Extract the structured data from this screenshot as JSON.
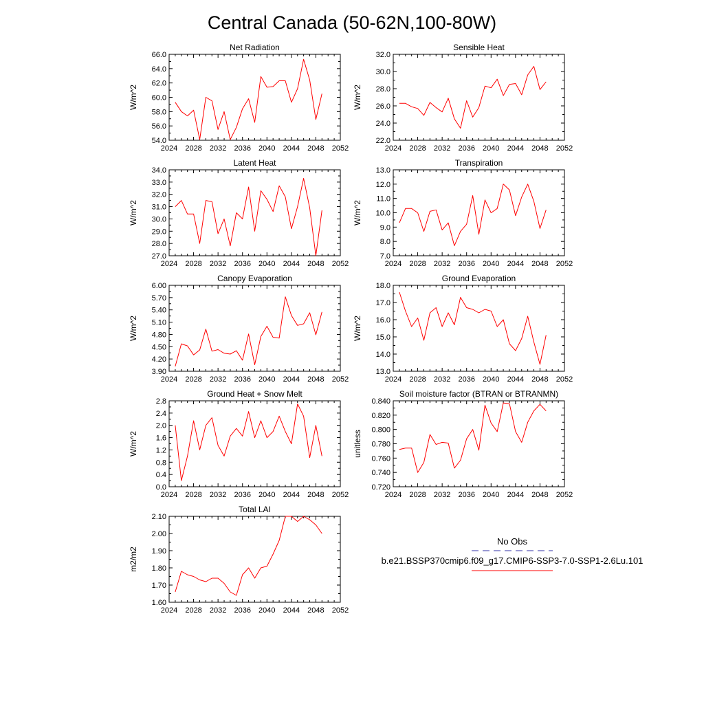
{
  "title": "Central Canada (50-62N,100-80W)",
  "legend": {
    "obs_label": "No Obs",
    "model_label": "b.e21.BSSP370cmip6.f09_g17.CMIP6-SSP3-7.0-SSP1-2.6Lu.101",
    "obs_color": "#3333aa",
    "model_color": "#ff0000"
  },
  "chart_data": [
    {
      "type": "line",
      "title": "Net Radiation",
      "ylabel": "W/m^2",
      "xlim": [
        2024,
        2052
      ],
      "ylim": [
        54.0,
        66.0
      ],
      "xticks": [
        "2024",
        "2028",
        "2032",
        "2036",
        "2040",
        "2044",
        "2048",
        "2052"
      ],
      "yticks": [
        "54.0",
        "56.0",
        "58.0",
        "60.0",
        "62.0",
        "64.0",
        "66.0"
      ],
      "x": [
        2025,
        2026,
        2027,
        2028,
        2029,
        2030,
        2031,
        2032,
        2033,
        2034,
        2035,
        2036,
        2037,
        2038,
        2039,
        2040,
        2041,
        2042,
        2043,
        2044,
        2045,
        2046,
        2047,
        2048,
        2049
      ],
      "series": [
        {
          "values": [
            59.3,
            58.0,
            57.4,
            58.2,
            54.1,
            60.0,
            59.5,
            55.5,
            58.0,
            54.1,
            55.8,
            58.4,
            59.8,
            56.5,
            62.9,
            61.4,
            61.5,
            62.3,
            62.3,
            59.3,
            61.2,
            65.3,
            62.4,
            56.9,
            60.5
          ]
        }
      ]
    },
    {
      "type": "line",
      "title": "Sensible Heat",
      "ylabel": "W/m^2",
      "xlim": [
        2024,
        2052
      ],
      "ylim": [
        22.0,
        32.0
      ],
      "xticks": [
        "2024",
        "2028",
        "2032",
        "2036",
        "2040",
        "2044",
        "2048",
        "2052"
      ],
      "yticks": [
        "22.0",
        "24.0",
        "26.0",
        "28.0",
        "30.0",
        "32.0"
      ],
      "x": [
        2025,
        2026,
        2027,
        2028,
        2029,
        2030,
        2031,
        2032,
        2033,
        2034,
        2035,
        2036,
        2037,
        2038,
        2039,
        2040,
        2041,
        2042,
        2043,
        2044,
        2045,
        2046,
        2047,
        2048,
        2049
      ],
      "series": [
        {
          "values": [
            26.3,
            26.3,
            25.9,
            25.7,
            24.9,
            26.4,
            25.8,
            25.3,
            26.9,
            24.5,
            23.4,
            26.6,
            24.7,
            25.8,
            28.3,
            28.1,
            29.1,
            27.2,
            28.5,
            28.6,
            27.3,
            29.6,
            30.6,
            27.9,
            28.8
          ]
        }
      ]
    },
    {
      "type": "line",
      "title": "Latent Heat",
      "ylabel": "W/m^2",
      "xlim": [
        2024,
        2052
      ],
      "ylim": [
        27.0,
        34.0
      ],
      "xticks": [
        "2024",
        "2028",
        "2032",
        "2036",
        "2040",
        "2044",
        "2048",
        "2052"
      ],
      "yticks": [
        "27.0",
        "28.0",
        "29.0",
        "30.0",
        "31.0",
        "32.0",
        "33.0",
        "34.0"
      ],
      "x": [
        2025,
        2026,
        2027,
        2028,
        2029,
        2030,
        2031,
        2032,
        2033,
        2034,
        2035,
        2036,
        2037,
        2038,
        2039,
        2040,
        2041,
        2042,
        2043,
        2044,
        2045,
        2046,
        2047,
        2048,
        2049
      ],
      "series": [
        {
          "values": [
            31.0,
            31.5,
            30.4,
            30.4,
            28.0,
            31.5,
            31.4,
            28.8,
            30.0,
            27.8,
            30.5,
            30.0,
            32.6,
            29.0,
            32.3,
            31.6,
            30.6,
            32.7,
            31.8,
            29.2,
            31.0,
            33.3,
            30.9,
            27.0,
            30.7
          ]
        }
      ]
    },
    {
      "type": "line",
      "title": "Transpiration",
      "ylabel": "W/m^2",
      "xlim": [
        2024,
        2052
      ],
      "ylim": [
        7.0,
        13.0
      ],
      "xticks": [
        "2024",
        "2028",
        "2032",
        "2036",
        "2040",
        "2044",
        "2048",
        "2052"
      ],
      "yticks": [
        "7.0",
        "8.0",
        "9.0",
        "10.0",
        "11.0",
        "12.0",
        "13.0"
      ],
      "x": [
        2025,
        2026,
        2027,
        2028,
        2029,
        2030,
        2031,
        2032,
        2033,
        2034,
        2035,
        2036,
        2037,
        2038,
        2039,
        2040,
        2041,
        2042,
        2043,
        2044,
        2045,
        2046,
        2047,
        2048,
        2049
      ],
      "series": [
        {
          "values": [
            9.3,
            10.3,
            10.3,
            10.0,
            8.7,
            10.1,
            10.2,
            8.8,
            9.3,
            7.7,
            8.7,
            9.2,
            11.2,
            8.5,
            10.9,
            10.0,
            10.3,
            12.0,
            11.6,
            9.8,
            11.1,
            12.0,
            10.8,
            8.9,
            10.2
          ]
        }
      ]
    },
    {
      "type": "line",
      "title": "Canopy Evaporation",
      "ylabel": "W/m^2",
      "xlim": [
        2024,
        2052
      ],
      "ylim": [
        3.9,
        6.0
      ],
      "xticks": [
        "2024",
        "2028",
        "2032",
        "2036",
        "2040",
        "2044",
        "2048",
        "2052"
      ],
      "yticks": [
        "3.90",
        "4.20",
        "4.50",
        "4.80",
        "5.10",
        "5.40",
        "5.70",
        "6.00"
      ],
      "x": [
        2025,
        2026,
        2027,
        2028,
        2029,
        2030,
        2031,
        2032,
        2033,
        2034,
        2035,
        2036,
        2037,
        2038,
        2039,
        2040,
        2041,
        2042,
        2043,
        2044,
        2045,
        2046,
        2047,
        2048,
        2049
      ],
      "series": [
        {
          "values": [
            4.02,
            4.57,
            4.52,
            4.3,
            4.42,
            4.93,
            4.39,
            4.43,
            4.34,
            4.32,
            4.4,
            4.17,
            4.81,
            4.06,
            4.75,
            5.0,
            4.73,
            4.71,
            5.72,
            5.26,
            5.02,
            5.06,
            5.33,
            4.79,
            5.35
          ]
        }
      ]
    },
    {
      "type": "line",
      "title": "Ground Evaporation",
      "ylabel": "W/m^2",
      "xlim": [
        2024,
        2052
      ],
      "ylim": [
        13.0,
        18.0
      ],
      "xticks": [
        "2024",
        "2028",
        "2032",
        "2036",
        "2040",
        "2044",
        "2048",
        "2052"
      ],
      "yticks": [
        "13.0",
        "14.0",
        "15.0",
        "16.0",
        "17.0",
        "18.0"
      ],
      "x": [
        2025,
        2026,
        2027,
        2028,
        2029,
        2030,
        2031,
        2032,
        2033,
        2034,
        2035,
        2036,
        2037,
        2038,
        2039,
        2040,
        2041,
        2042,
        2043,
        2044,
        2045,
        2046,
        2047,
        2048,
        2049
      ],
      "series": [
        {
          "values": [
            17.6,
            16.5,
            15.6,
            16.1,
            14.8,
            16.4,
            16.7,
            15.6,
            16.4,
            15.7,
            17.3,
            16.7,
            16.6,
            16.4,
            16.6,
            16.5,
            15.6,
            16.0,
            14.6,
            14.2,
            14.9,
            16.2,
            14.7,
            13.4,
            15.1
          ]
        }
      ]
    },
    {
      "type": "line",
      "title": "Ground Heat + Snow Melt",
      "ylabel": "W/m^2",
      "xlim": [
        2024,
        2052
      ],
      "ylim": [
        0.0,
        2.8
      ],
      "xticks": [
        "2024",
        "2028",
        "2032",
        "2036",
        "2040",
        "2044",
        "2048",
        "2052"
      ],
      "yticks": [
        "0.0",
        "0.4",
        "0.8",
        "1.2",
        "1.6",
        "2.0",
        "2.4",
        "2.8"
      ],
      "x": [
        2025,
        2026,
        2027,
        2028,
        2029,
        2030,
        2031,
        2032,
        2033,
        2034,
        2035,
        2036,
        2037,
        2038,
        2039,
        2040,
        2041,
        2042,
        2043,
        2044,
        2045,
        2046,
        2047,
        2048,
        2049
      ],
      "series": [
        {
          "values": [
            2.0,
            0.2,
            1.0,
            2.15,
            1.2,
            2.0,
            2.25,
            1.35,
            1.0,
            1.65,
            1.9,
            1.65,
            2.45,
            1.6,
            2.15,
            1.6,
            1.8,
            2.3,
            1.8,
            1.4,
            2.7,
            2.3,
            0.95,
            2.0,
            1.0
          ]
        }
      ]
    },
    {
      "type": "line",
      "title": "Soil moisture factor (BTRAN or BTRANMN)",
      "ylabel": "unitless",
      "xlim": [
        2024,
        2052
      ],
      "ylim": [
        0.72,
        0.84
      ],
      "xticks": [
        "2024",
        "2028",
        "2032",
        "2036",
        "2040",
        "2044",
        "2048",
        "2052"
      ],
      "yticks": [
        "0.720",
        "0.740",
        "0.760",
        "0.780",
        "0.800",
        "0.820",
        "0.840"
      ],
      "x": [
        2025,
        2026,
        2027,
        2028,
        2029,
        2030,
        2031,
        2032,
        2033,
        2034,
        2035,
        2036,
        2037,
        2038,
        2039,
        2040,
        2041,
        2042,
        2043,
        2044,
        2045,
        2046,
        2047,
        2048,
        2049
      ],
      "series": [
        {
          "values": [
            0.772,
            0.774,
            0.774,
            0.74,
            0.754,
            0.793,
            0.779,
            0.782,
            0.781,
            0.746,
            0.757,
            0.787,
            0.8,
            0.771,
            0.834,
            0.809,
            0.797,
            0.837,
            0.836,
            0.797,
            0.782,
            0.81,
            0.826,
            0.835,
            0.826
          ]
        }
      ]
    },
    {
      "type": "line",
      "title": "Total LAI",
      "ylabel": "m2/m2",
      "xlim": [
        2024,
        2052
      ],
      "ylim": [
        1.6,
        2.1
      ],
      "xticks": [
        "2024",
        "2028",
        "2032",
        "2036",
        "2040",
        "2044",
        "2048",
        "2052"
      ],
      "yticks": [
        "1.60",
        "1.70",
        "1.80",
        "1.90",
        "2.00",
        "2.10"
      ],
      "x": [
        2025,
        2026,
        2027,
        2028,
        2029,
        2030,
        2031,
        2032,
        2033,
        2034,
        2035,
        2036,
        2037,
        2038,
        2039,
        2040,
        2041,
        2042,
        2043,
        2044,
        2045,
        2046,
        2047,
        2048,
        2049
      ],
      "series": [
        {
          "values": [
            1.66,
            1.78,
            1.76,
            1.75,
            1.73,
            1.72,
            1.74,
            1.74,
            1.71,
            1.66,
            1.64,
            1.76,
            1.8,
            1.74,
            1.8,
            1.81,
            1.88,
            1.96,
            2.1,
            2.1,
            2.07,
            2.1,
            2.08,
            2.05,
            2.0
          ]
        }
      ]
    }
  ]
}
